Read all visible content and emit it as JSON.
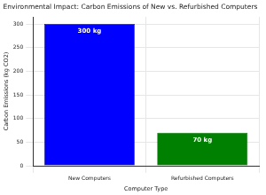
{
  "chart_data": {
    "type": "bar",
    "title": "Environmental Impact: Carbon Emissions of New vs. Refurbished Computers",
    "x_label": "Computer Type",
    "y_label": "Carbon Emissions (kg CO2)",
    "categories": [
      "New Computers",
      "Refurbished Computers"
    ],
    "values": [
      300,
      70
    ],
    "value_labels": [
      "300 kg",
      "70 kg"
    ],
    "colors": [
      "#0000ff",
      "#008000"
    ],
    "ylim": [
      0,
      315
    ],
    "yticks": [
      0,
      50,
      100,
      150,
      200,
      250,
      300
    ],
    "grid": true,
    "data_labels": true
  }
}
